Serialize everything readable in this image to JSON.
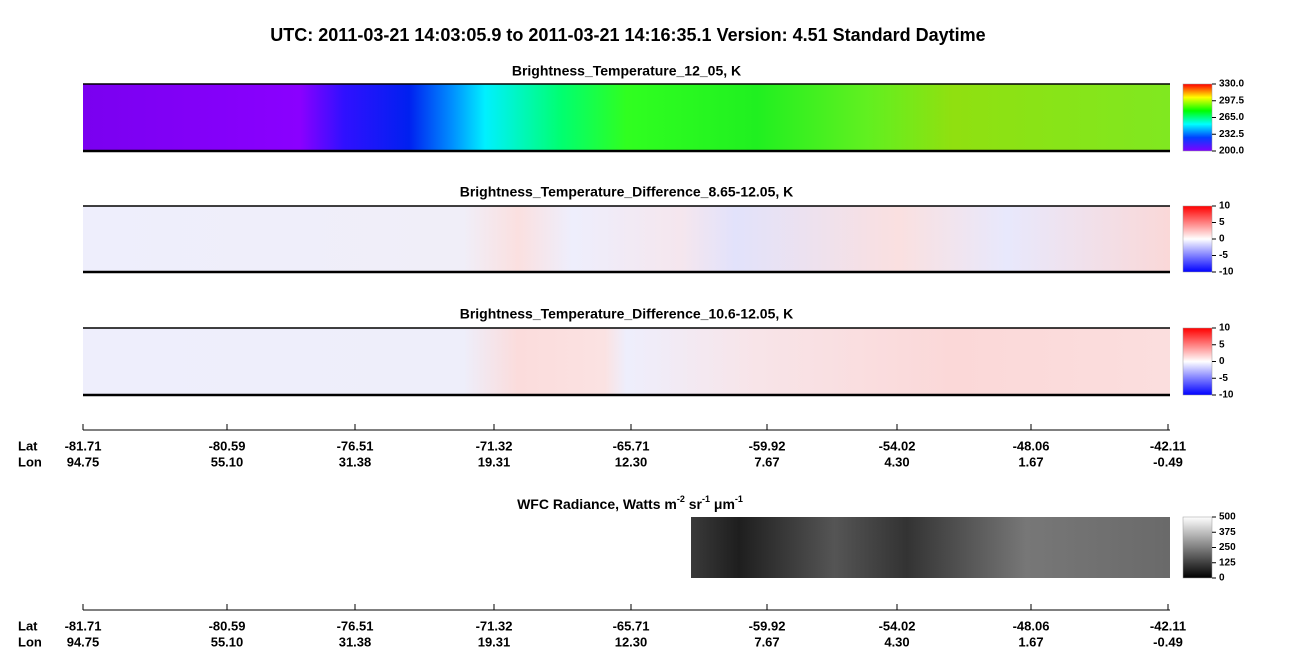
{
  "title": "UTC:  2011-03-21   14:03:05.9  to  2011-03-21   14:16:35.1    Version: 4.51  Standard Daytime",
  "panels": [
    {
      "title": "Brightness_Temperature_12_05, K",
      "range": [
        200,
        330
      ],
      "ticks": [
        {
          "value": 330,
          "label": "330.0"
        },
        {
          "value": 297.5,
          "label": "297.5"
        },
        {
          "value": 265,
          "label": "265.0"
        },
        {
          "value": 232.5,
          "label": "232.5"
        },
        {
          "value": 200,
          "label": "200.0"
        }
      ]
    },
    {
      "title": "Brightness_Temperature_Difference_8.65-12.05, K",
      "range": [
        -10,
        10
      ],
      "ticks": [
        10,
        5,
        0,
        -5,
        -10
      ]
    },
    {
      "title": "Brightness_Temperature_Difference_10.6-12.05, K",
      "range": [
        -10,
        10
      ],
      "ticks": [
        10,
        5,
        0,
        -5,
        -10
      ]
    },
    {
      "title_parts": [
        "WFC Radiance, Watts m",
        "-2",
        " sr",
        "-1",
        " μm",
        "-1"
      ],
      "range": [
        0,
        500
      ],
      "ticks": [
        500,
        375,
        250,
        125,
        0
      ]
    }
  ],
  "axes": [
    {
      "lat_label": "Lat",
      "lon_label": "Lon",
      "lat": [
        "-81.71",
        "-80.59",
        "-76.51",
        "-71.32",
        "-65.71",
        "-59.92",
        "-54.02",
        "-48.06",
        "-42.11"
      ],
      "lon": [
        "94.75",
        "55.10",
        "31.38",
        "19.31",
        "12.30",
        "7.67",
        "4.30",
        "1.67",
        "-0.49"
      ]
    },
    {
      "lat_label": "Lat",
      "lon_label": "Lon",
      "lat": [
        "-81.71",
        "-80.59",
        "-76.51",
        "-71.32",
        "-65.71",
        "-59.92",
        "-54.02",
        "-48.06",
        "-42.11"
      ],
      "lon": [
        "94.75",
        "55.10",
        "31.38",
        "19.31",
        "12.30",
        "7.67",
        "4.30",
        "1.67",
        "-0.49"
      ]
    }
  ]
}
